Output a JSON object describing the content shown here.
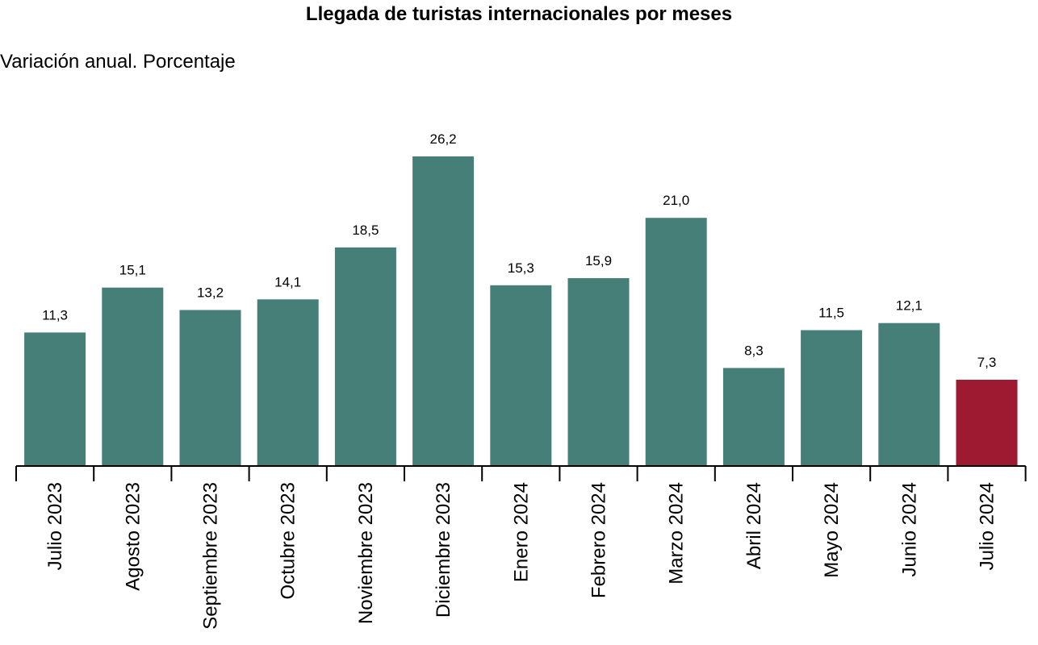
{
  "chart_data": {
    "type": "bar",
    "title": "Llegada de turistas internacionales por meses",
    "subtitle": "Variación anual. Porcentaje",
    "categories": [
      "Julio 2023",
      "Agosto 2023",
      "Septiembre 2023",
      "Octubre 2023",
      "Noviembre 2023",
      "Diciembre 2023",
      "Enero 2024",
      "Febrero 2024",
      "Marzo 2024",
      "Abril 2024",
      "Mayo 2024",
      "Junio 2024",
      "Julio 2024"
    ],
    "values": [
      11.3,
      15.1,
      13.2,
      14.1,
      18.5,
      26.2,
      15.3,
      15.9,
      21.0,
      8.3,
      11.5,
      12.1,
      7.3
    ],
    "data_labels": [
      "11,3",
      "15,1",
      "13,2",
      "14,1",
      "18,5",
      "26,2",
      "15,3",
      "15,9",
      "21,0",
      "8,3",
      "11,5",
      "12,1",
      "7,3"
    ],
    "colors": {
      "default_bar": "#467e78",
      "highlight_bar": "#9e1a31",
      "axis": "#000000"
    },
    "highlight_index": 12,
    "ylim": [
      0,
      26.2
    ],
    "grid": false,
    "legend": "none",
    "xlabel": "",
    "ylabel": ""
  }
}
